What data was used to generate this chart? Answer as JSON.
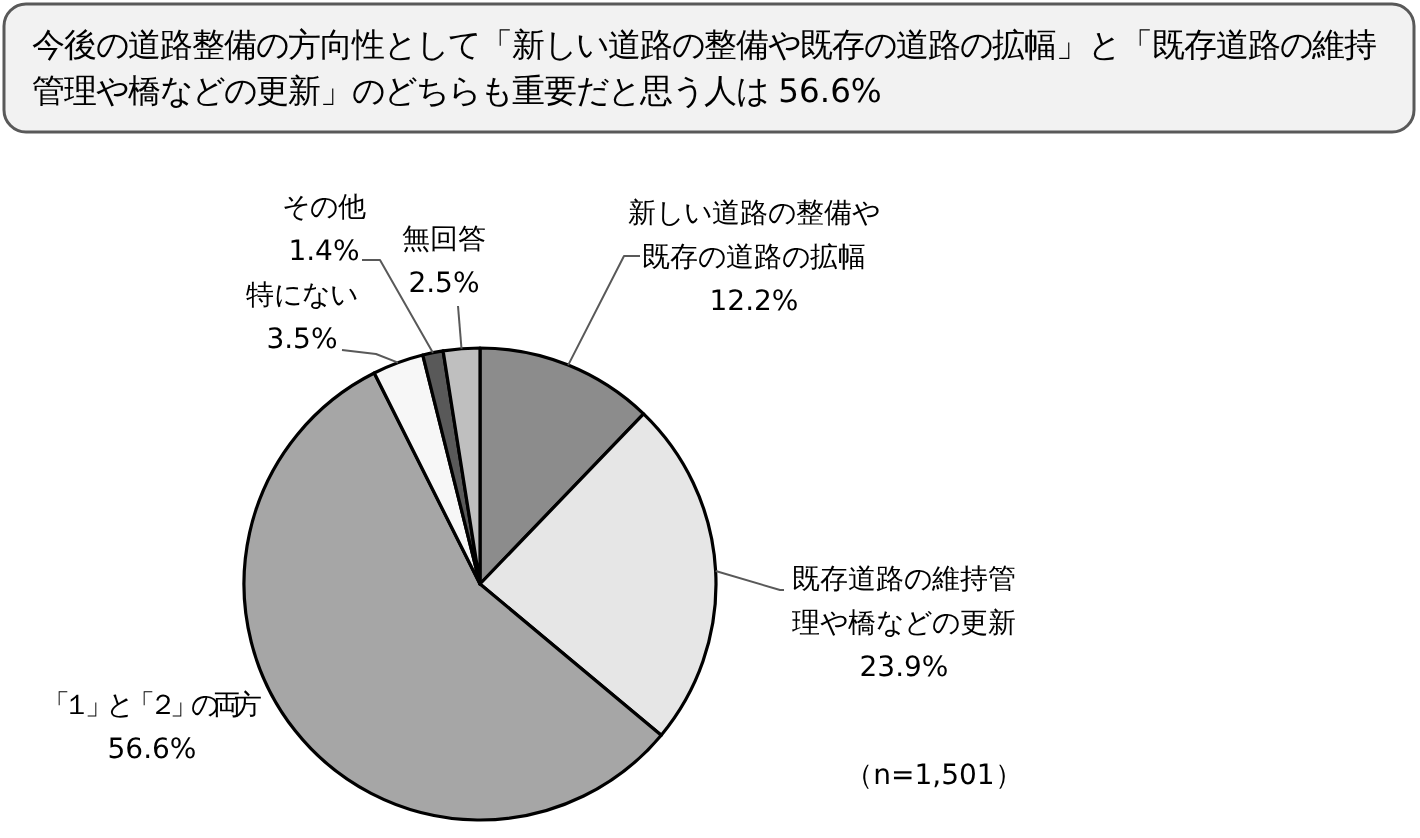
{
  "chart_data": {
    "type": "pie",
    "title": "今後の道路整備の方向性として「新しい道路の整備や既存の道路の拡幅」と「既存道路の維持管理や橋などの更新」のどちらも重要だと思う人は 56.6%",
    "categories": [
      "新しい道路の整備や既存の道路の拡幅",
      "既存道路の維持管理や橋などの更新",
      "「１」と「２」の両方",
      "特にない",
      "その他",
      "無回答"
    ],
    "values": [
      12.2,
      23.9,
      56.6,
      3.5,
      1.4,
      2.5
    ],
    "value_labels": [
      "12.2%",
      "23.9%",
      "56.6%",
      "3.5%",
      "1.4%",
      "2.5%"
    ],
    "colors": [
      "#8c8c8c",
      "#e6e6e6",
      "#a6a6a6",
      "#f7f7f7",
      "#595959",
      "#bfbfbf"
    ],
    "annotations": [
      "（n=1,501）"
    ]
  }
}
